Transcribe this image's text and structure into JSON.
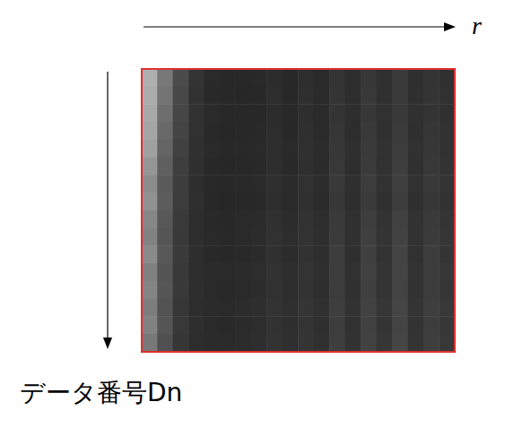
{
  "chart_data": {
    "type": "heatmap",
    "x_label": "r",
    "y_label": "データ番号Dn",
    "tick_labels": false,
    "cells": [
      [
        175,
        120,
        75,
        52,
        42,
        40,
        40,
        41,
        44,
        40,
        46,
        42,
        52,
        45,
        55,
        48,
        58,
        47,
        52,
        48
      ],
      [
        172,
        115,
        72,
        50,
        41,
        40,
        39,
        40,
        45,
        40,
        47,
        42,
        53,
        45,
        56,
        48,
        58,
        47,
        53,
        49
      ],
      [
        168,
        110,
        70,
        50,
        42,
        40,
        40,
        40,
        44,
        41,
        46,
        43,
        52,
        46,
        55,
        49,
        57,
        48,
        52,
        48
      ],
      [
        165,
        105,
        68,
        49,
        41,
        39,
        40,
        41,
        45,
        40,
        47,
        42,
        54,
        45,
        57,
        48,
        59,
        47,
        54,
        50
      ],
      [
        160,
        100,
        65,
        48,
        42,
        40,
        41,
        42,
        46,
        42,
        48,
        44,
        55,
        47,
        58,
        50,
        60,
        49,
        55,
        50
      ],
      [
        150,
        95,
        62,
        47,
        40,
        39,
        40,
        41,
        45,
        41,
        47,
        43,
        56,
        46,
        59,
        49,
        62,
        48,
        56,
        51
      ],
      [
        140,
        90,
        60,
        46,
        41,
        40,
        41,
        42,
        47,
        43,
        49,
        44,
        57,
        47,
        60,
        50,
        63,
        49,
        57,
        52
      ],
      [
        145,
        92,
        60,
        47,
        40,
        38,
        40,
        41,
        46,
        42,
        48,
        43,
        55,
        46,
        58,
        48,
        61,
        47,
        55,
        50
      ],
      [
        135,
        88,
        58,
        45,
        41,
        40,
        42,
        43,
        48,
        44,
        50,
        45,
        58,
        48,
        62,
        51,
        65,
        50,
        58,
        53
      ],
      [
        130,
        85,
        57,
        45,
        42,
        41,
        42,
        44,
        49,
        45,
        51,
        46,
        59,
        48,
        63,
        52,
        66,
        50,
        59,
        54
      ],
      [
        138,
        88,
        58,
        46,
        41,
        40,
        41,
        43,
        48,
        44,
        50,
        45,
        60,
        47,
        64,
        51,
        67,
        49,
        60,
        53
      ],
      [
        128,
        84,
        56,
        45,
        43,
        42,
        43,
        45,
        50,
        46,
        52,
        47,
        61,
        49,
        65,
        53,
        68,
        51,
        61,
        55
      ],
      [
        132,
        86,
        57,
        46,
        42,
        41,
        42,
        44,
        49,
        45,
        51,
        46,
        60,
        48,
        64,
        52,
        67,
        50,
        60,
        54
      ],
      [
        125,
        82,
        55,
        45,
        43,
        42,
        44,
        46,
        51,
        47,
        53,
        48,
        62,
        50,
        66,
        54,
        69,
        52,
        62,
        56
      ],
      [
        130,
        85,
        56,
        46,
        42,
        41,
        43,
        45,
        50,
        46,
        52,
        47,
        61,
        49,
        65,
        53,
        68,
        51,
        61,
        55
      ],
      [
        120,
        80,
        54,
        45,
        43,
        42,
        44,
        46,
        51,
        47,
        53,
        48,
        62,
        50,
        66,
        54,
        69,
        52,
        62,
        56
      ]
    ]
  }
}
